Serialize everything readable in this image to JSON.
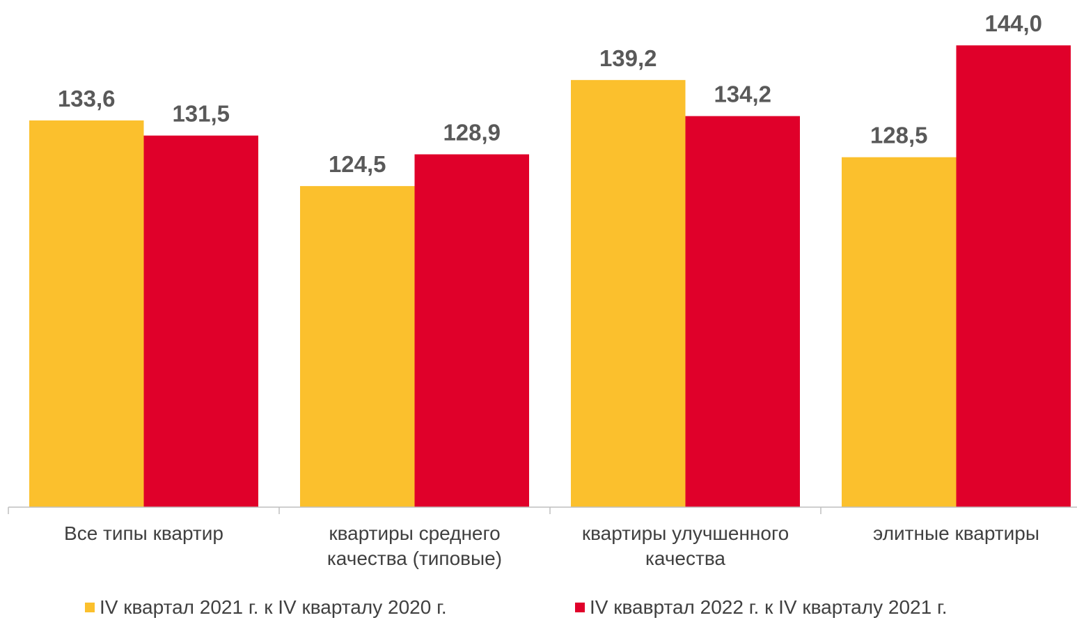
{
  "chart_data": {
    "type": "bar",
    "categories": [
      "Все типы квартир",
      "квартиры среднего качества (типовые)",
      "квартиры улучшенного качества",
      "элитные квартиры"
    ],
    "series": [
      {
        "name": "IV квартал 2021 г. к IV кварталу 2020 г.",
        "color": "#fbc02d",
        "values": [
          133.6,
          124.5,
          139.2,
          128.5
        ],
        "value_labels": [
          "133,6",
          "124,5",
          "139,2",
          "128,5"
        ]
      },
      {
        "name": "IV квавртал 2022 г. к IV кварталу 2021 г.",
        "color": "#e0002a",
        "values": [
          131.5,
          128.9,
          134.2,
          144.0
        ],
        "value_labels": [
          "131,5",
          "128,9",
          "134,2",
          "144,0"
        ]
      }
    ],
    "ylim": [
      80,
      150
    ]
  }
}
